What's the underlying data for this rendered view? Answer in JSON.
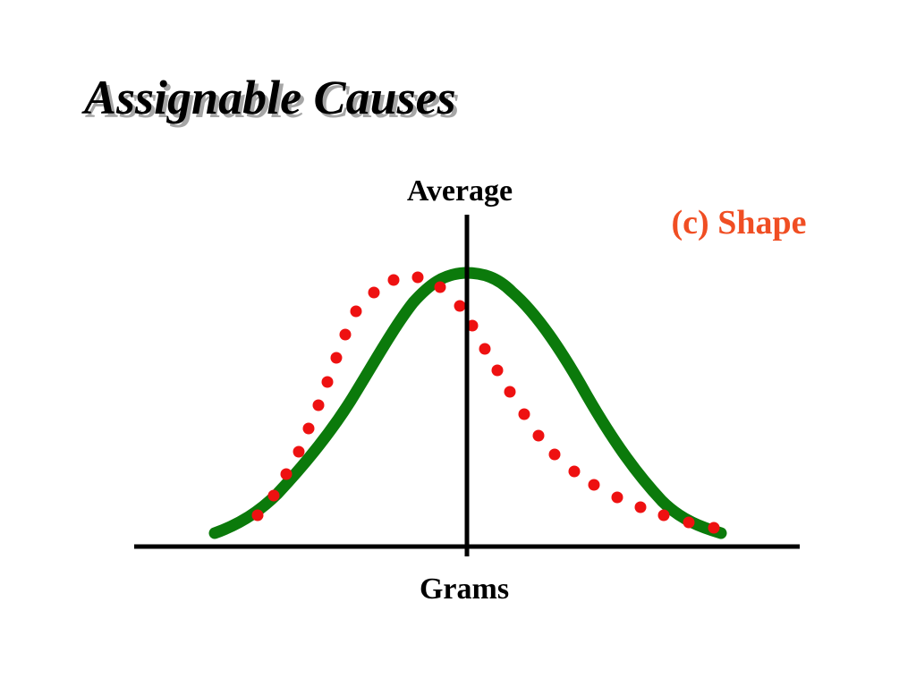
{
  "slide": {
    "title": "Assignable Causes"
  },
  "diagram": {
    "vertical_axis_label": "Average",
    "horizontal_axis_label": "Grams",
    "panel_label": "(c) Shape",
    "colors": {
      "original_curve": "#0b7a0b",
      "shifted_curve": "#ee1111",
      "panel_label": "#f04e23",
      "axes": "#000000"
    }
  }
}
